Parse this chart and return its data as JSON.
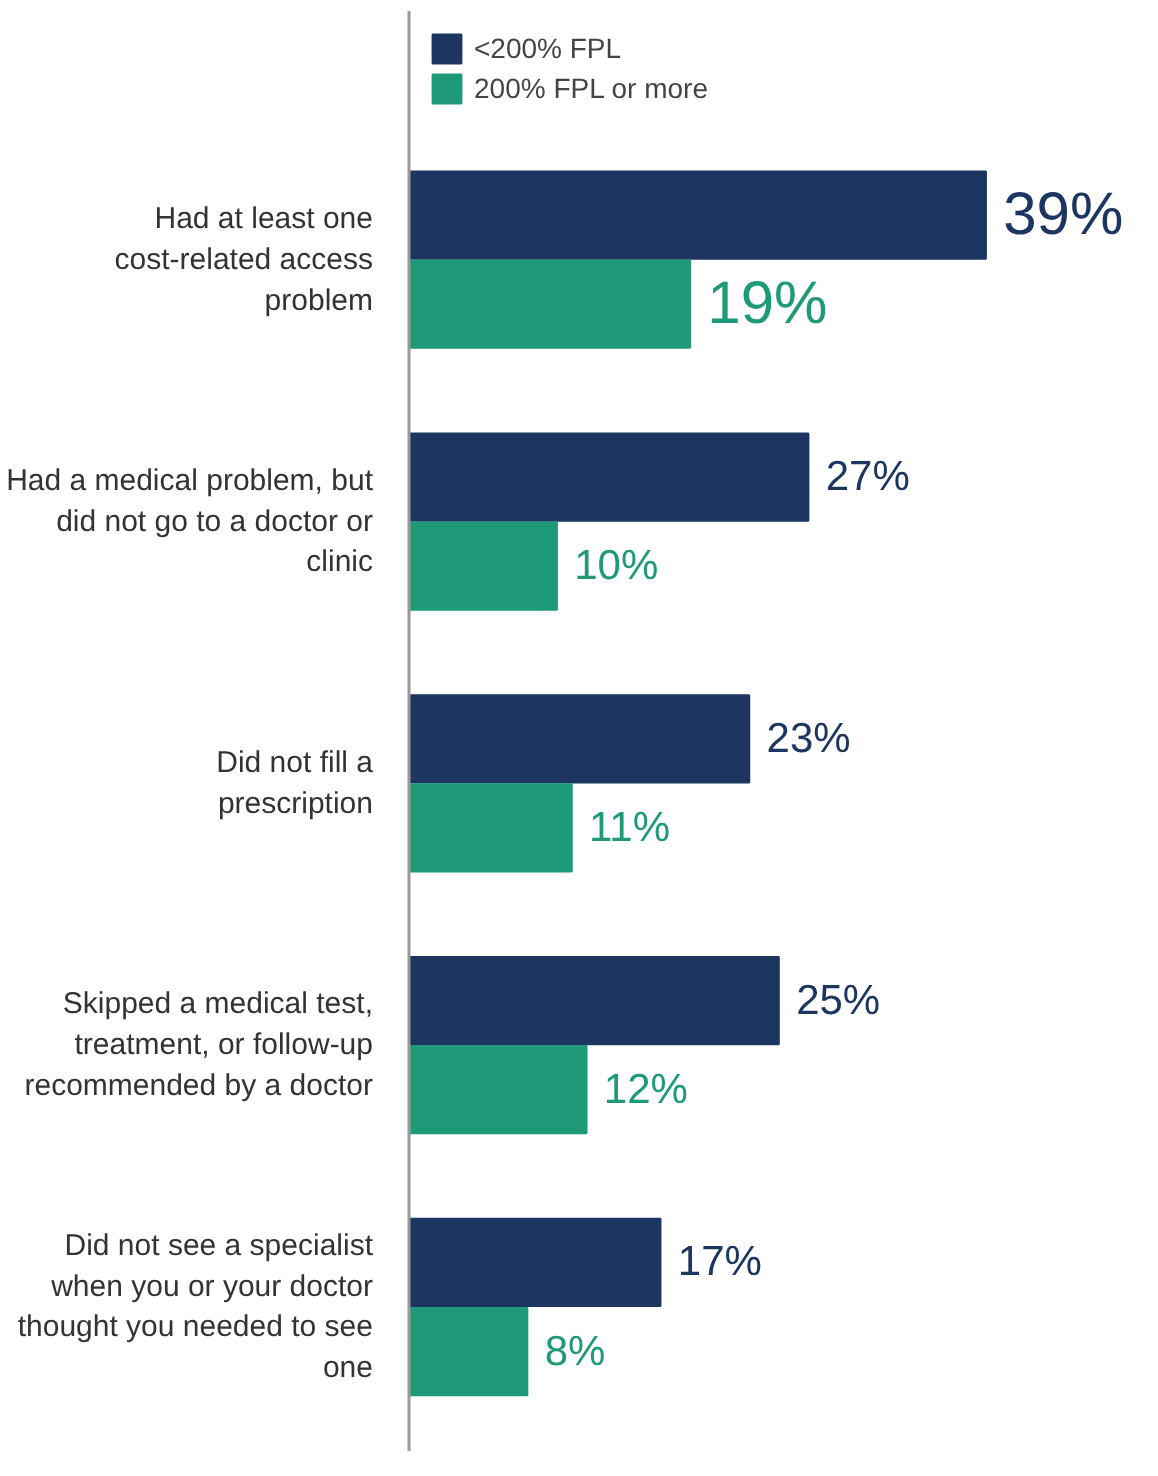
{
  "chart_data": {
    "type": "bar",
    "orientation": "horizontal",
    "categories": [
      "Had at least one cost-related access problem",
      "Had a medical problem, but did not go to a doctor or clinic",
      "Did not fill a prescription",
      "Skipped a medical test, treatment, or follow-up recommended by a doctor",
      "Did not see a specialist when you or your doctor thought you needed to see one"
    ],
    "series": [
      {
        "name": "<200% FPL",
        "color": "#1d3661",
        "values": [
          39,
          27,
          23,
          25,
          17
        ],
        "value_labels": [
          "39%",
          "27%",
          "23%",
          "25%",
          "17%"
        ]
      },
      {
        "name": "200% FPL or more",
        "color": "#1e9a78",
        "values": [
          19,
          10,
          11,
          12,
          8
        ],
        "value_labels": [
          "19%",
          "10%",
          "11%",
          "12%",
          "8%"
        ]
      }
    ],
    "legend": "top",
    "grid": false
  }
}
